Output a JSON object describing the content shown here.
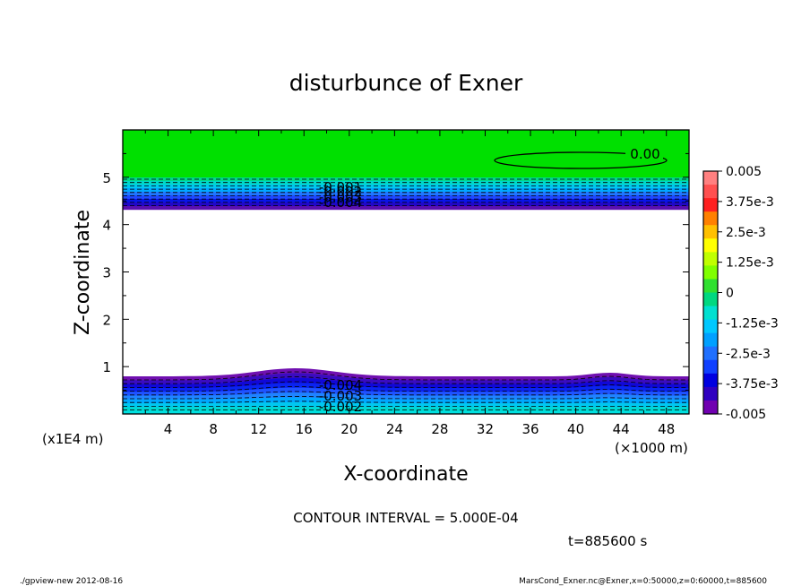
{
  "chart_data": {
    "type": "contour",
    "title": "disturbunce of Exner",
    "xlabel": "X-coordinate",
    "ylabel": "Z-coordinate",
    "x_unit_label": "(×1000 m)",
    "y_unit_label": "(x1E4 m)",
    "xlim": [
      0,
      50
    ],
    "ylim": [
      0,
      6
    ],
    "x_ticks": [
      4,
      8,
      12,
      16,
      20,
      24,
      28,
      32,
      36,
      40,
      44,
      48
    ],
    "y_ticks": [
      1,
      2,
      3,
      4,
      5
    ],
    "colorbar_labels": [
      "0.005",
      "3.75e-3",
      "2.5e-3",
      "1.25e-3",
      "0",
      "-1.25e-3",
      "-2.5e-3",
      "-3.75e-3",
      "-0.005"
    ],
    "colorbar_range": [
      -0.005,
      0.005
    ],
    "colorbar_colors": [
      "#ff8080",
      "#ff5050",
      "#ff2020",
      "#ff8000",
      "#ffc000",
      "#ffff00",
      "#c0ff00",
      "#80ff00",
      "#30e030",
      "#00d880",
      "#00e0d0",
      "#00c8ff",
      "#00a0ff",
      "#2070ff",
      "#1040ff",
      "#0000e0",
      "#3000c0",
      "#7000b0"
    ],
    "contour_labels_top": [
      "-0.001",
      "-0.002",
      "-0.003",
      "-0.004"
    ],
    "contour_labels_bottom": [
      "-0.004",
      "-0.003",
      "-0.002"
    ],
    "contour_label_zero": "0.00",
    "contour_interval_text": "CONTOUR INTERVAL = 5.000E-04",
    "time_text": "t=885600 s",
    "footer_left": "./gpview-new  2012-08-16",
    "footer_right": "MarsCond_Exner.nc@Exner,x=0:50000,z=0:60000,t=885600"
  }
}
